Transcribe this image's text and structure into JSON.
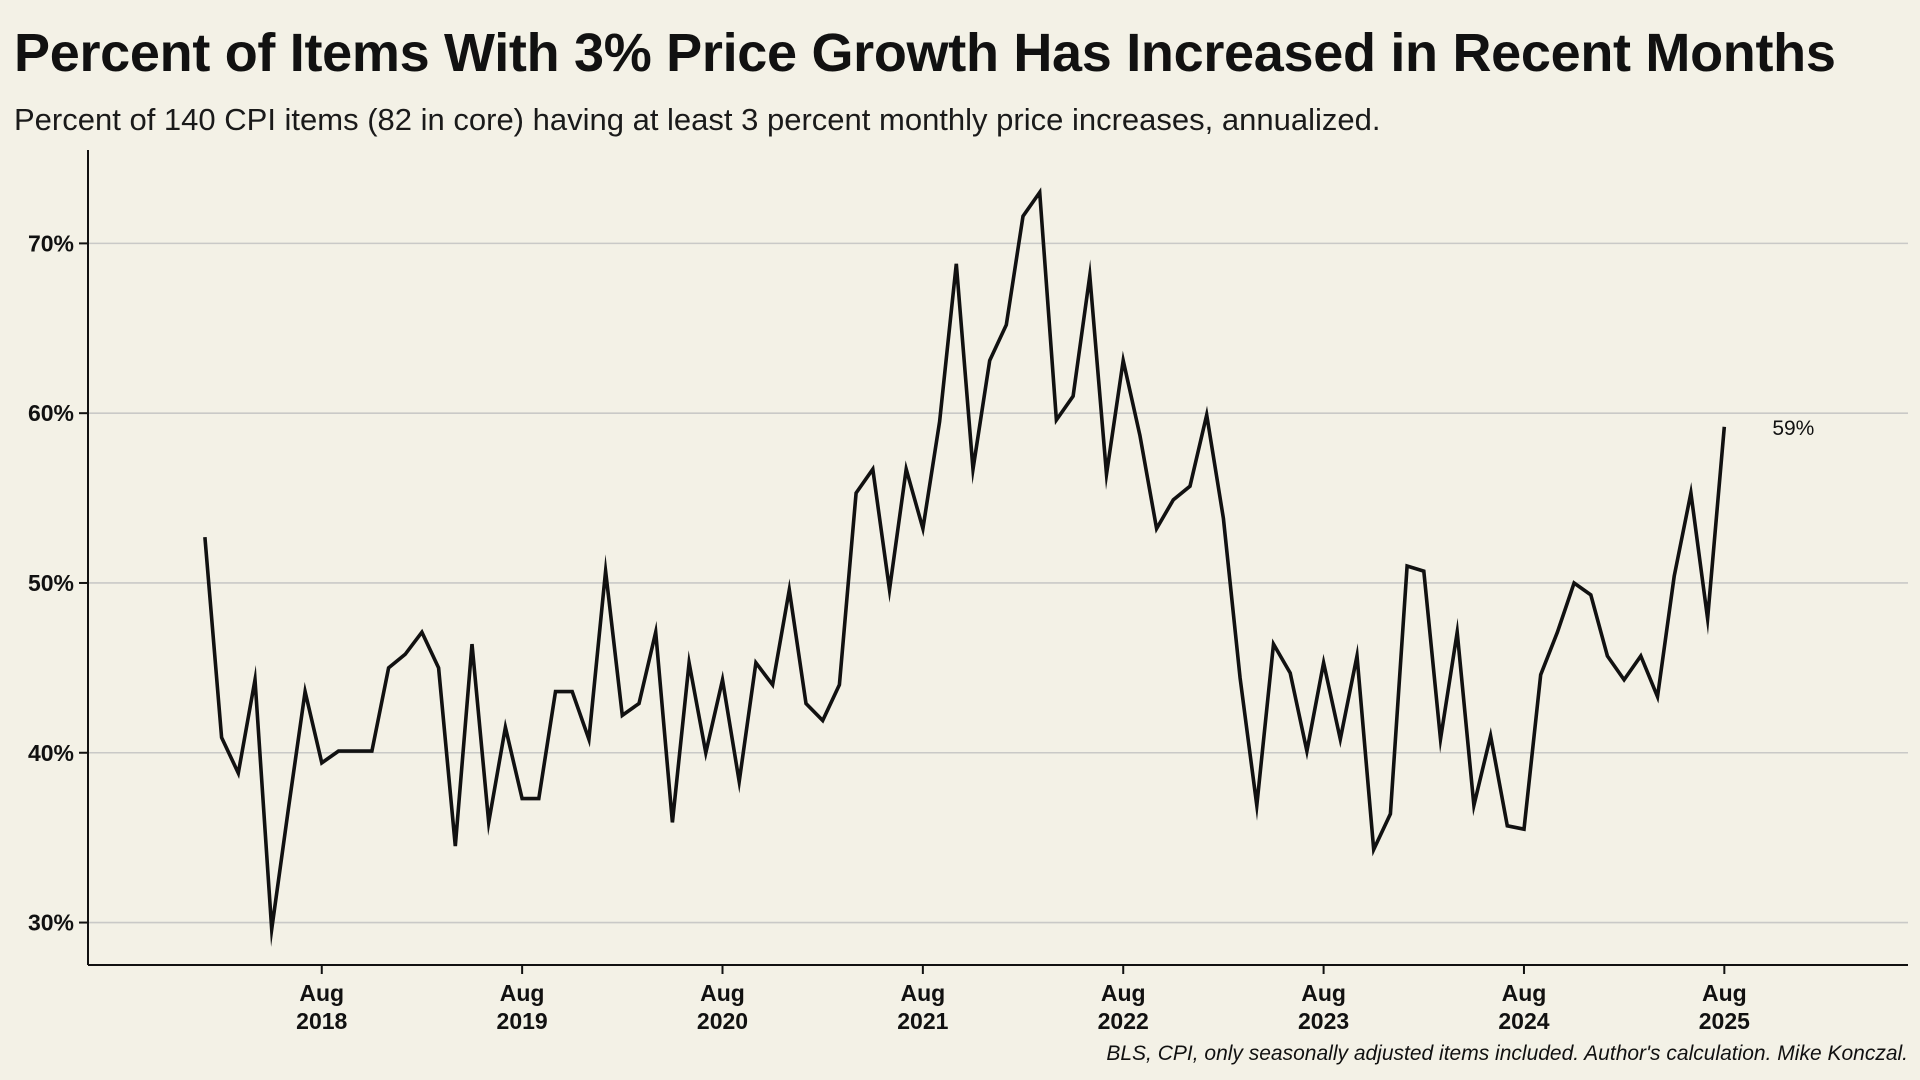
{
  "chart_data": {
    "type": "line",
    "title": "Percent of Items With 3% Price Growth Has Increased in Recent Months",
    "subtitle": "Percent of 140 CPI items (82 in core) having at least 3 percent monthly price increases, annualized.",
    "source": "BLS, CPI, only seasonally adjusted items included. Author's calculation. Mike Konczal.",
    "y_ticks": [
      30,
      40,
      50,
      60,
      70
    ],
    "y_tick_labels": [
      "30%",
      "40%",
      "50%",
      "60%",
      "70%"
    ],
    "ylim": [
      27.5,
      75.5
    ],
    "x_ticks": [
      "2018-08",
      "2019-08",
      "2020-08",
      "2021-08",
      "2022-08",
      "2023-08",
      "2024-08",
      "2025-08"
    ],
    "x_tick_labels": [
      {
        "month": "Aug",
        "year": "2018"
      },
      {
        "month": "Aug",
        "year": "2019"
      },
      {
        "month": "Aug",
        "year": "2020"
      },
      {
        "month": "Aug",
        "year": "2021"
      },
      {
        "month": "Aug",
        "year": "2022"
      },
      {
        "month": "Aug",
        "year": "2023"
      },
      {
        "month": "Aug",
        "year": "2024"
      },
      {
        "month": "Aug",
        "year": "2025"
      }
    ],
    "xlim": [
      "2017-06",
      "2026-07"
    ],
    "grid": "horizontal",
    "end_label": "59%",
    "line_color": "#111111",
    "grid_color": "#c9c9c7",
    "background": "#f3f1e6",
    "series": [
      {
        "x": [
          "2018-01",
          "2018-02",
          "2018-03",
          "2018-04",
          "2018-05",
          "2018-06",
          "2018-07",
          "2018-08",
          "2018-09",
          "2018-10",
          "2018-11",
          "2018-12",
          "2019-01",
          "2019-02",
          "2019-03",
          "2019-04",
          "2019-05",
          "2019-06",
          "2019-07",
          "2019-08",
          "2019-09",
          "2019-10",
          "2019-11",
          "2019-12",
          "2020-01",
          "2020-02",
          "2020-03",
          "2020-04",
          "2020-05",
          "2020-06",
          "2020-07",
          "2020-08",
          "2020-09",
          "2020-10",
          "2020-11",
          "2020-12",
          "2021-01",
          "2021-02",
          "2021-03",
          "2021-04",
          "2021-05",
          "2021-06",
          "2021-07",
          "2021-08",
          "2021-09",
          "2021-10",
          "2021-11",
          "2021-12",
          "2022-01",
          "2022-02",
          "2022-03",
          "2022-04",
          "2022-05",
          "2022-06",
          "2022-07",
          "2022-08",
          "2022-09",
          "2022-10",
          "2022-11",
          "2022-12",
          "2023-01",
          "2023-02",
          "2023-03",
          "2023-04",
          "2023-05",
          "2023-06",
          "2023-07",
          "2023-08",
          "2023-09",
          "2023-10",
          "2023-11",
          "2023-12",
          "2024-01",
          "2024-02",
          "2024-03",
          "2024-04",
          "2024-05",
          "2024-06",
          "2024-07",
          "2024-08",
          "2024-09",
          "2024-10",
          "2024-11",
          "2024-12",
          "2025-01",
          "2025-02",
          "2025-03",
          "2025-04",
          "2025-05",
          "2025-06",
          "2025-07",
          "2025-08"
        ],
        "values": [
          52.7,
          40.9,
          38.8,
          44.3,
          29.6,
          36.7,
          43.6,
          39.4,
          40.1,
          40.1,
          40.1,
          45.0,
          45.8,
          47.1,
          45.0,
          34.5,
          46.4,
          35.9,
          41.5,
          37.3,
          37.3,
          43.6,
          43.6,
          40.8,
          50.7,
          42.2,
          42.9,
          47.1,
          35.9,
          45.3,
          40.0,
          44.3,
          38.3,
          45.3,
          44.0,
          49.6,
          42.9,
          41.9,
          44.0,
          55.3,
          56.7,
          49.6,
          56.7,
          53.2,
          59.5,
          68.8,
          56.7,
          63.1,
          65.2,
          71.6,
          73.0,
          59.6,
          61.0,
          68.1,
          56.4,
          63.1,
          58.7,
          53.2,
          54.9,
          55.7,
          59.9,
          53.8,
          44.4,
          36.9,
          46.4,
          44.7,
          40.1,
          45.3,
          40.8,
          45.7,
          34.3,
          36.4,
          51.0,
          50.7,
          40.8,
          47.1,
          36.9,
          41.0,
          35.7,
          35.5,
          44.6,
          47.1,
          50.0,
          49.3,
          45.7,
          44.3,
          45.7,
          43.3,
          50.4,
          55.3,
          47.9,
          59.2
        ]
      }
    ]
  }
}
